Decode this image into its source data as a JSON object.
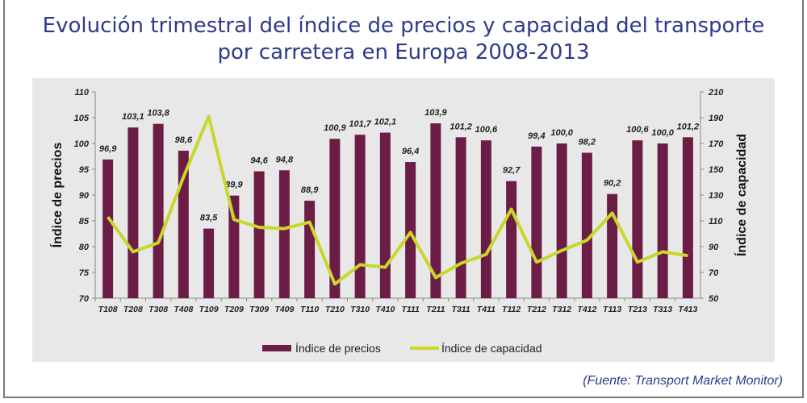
{
  "title_line1": "Evolución trimestral del índice de precios y capacidad del transporte",
  "title_line2": "por carretera en Europa 2008-2013",
  "source": "(Fuente: Transport Market Monitor)",
  "colors": {
    "bars": "#6b1d46",
    "line": "#c8d72a",
    "title": "#2e3a8c"
  },
  "chart_data": {
    "type": "bar+line",
    "categories": [
      "T108",
      "T208",
      "T308",
      "T408",
      "T109",
      "T209",
      "T309",
      "T409",
      "T110",
      "T210",
      "T310",
      "T410",
      "T111",
      "T211",
      "T311",
      "T411",
      "T112",
      "T212",
      "T312",
      "T412",
      "T113",
      "T213",
      "T313",
      "T413"
    ],
    "series": [
      {
        "name": "Índice de precios",
        "type": "bar",
        "axis": "left",
        "values": [
          96.9,
          103.1,
          103.8,
          98.6,
          83.5,
          89.9,
          94.6,
          94.8,
          88.9,
          100.9,
          101.7,
          102.1,
          96.4,
          103.9,
          101.2,
          100.6,
          92.7,
          99.4,
          100.0,
          98.2,
          90.2,
          100.6,
          100.0,
          101.2
        ],
        "labels": [
          "96,9",
          "103,1",
          "103,8",
          "98,6",
          "83,5",
          "89,9",
          "94,6",
          "94,8",
          "88,9",
          "100,9",
          "101,7",
          "102,1",
          "96,4",
          "103,9",
          "101,2",
          "100,6",
          "92,7",
          "99,4",
          "100,0",
          "98,2",
          "90,2",
          "100,6",
          "100,0",
          "101,2"
        ]
      },
      {
        "name": "Índice de capacidad",
        "type": "line",
        "axis": "right",
        "values": [
          113,
          86,
          93,
          144,
          191,
          111,
          105,
          104,
          109,
          61,
          76,
          74,
          101,
          66,
          77,
          84,
          119,
          78,
          87,
          95,
          116,
          78,
          86,
          83
        ]
      }
    ],
    "ylabel": "Índice de precios",
    "y2label": "Índice de capacidad",
    "ylim": [
      70,
      110
    ],
    "yticks": [
      "70",
      "75",
      "80",
      "85",
      "90",
      "95",
      "100",
      "105",
      "110"
    ],
    "y2lim": [
      50,
      210
    ],
    "y2ticks": [
      "50",
      "70",
      "90",
      "110",
      "130",
      "150",
      "170",
      "190",
      "210"
    ],
    "legend": "bottom-center"
  }
}
